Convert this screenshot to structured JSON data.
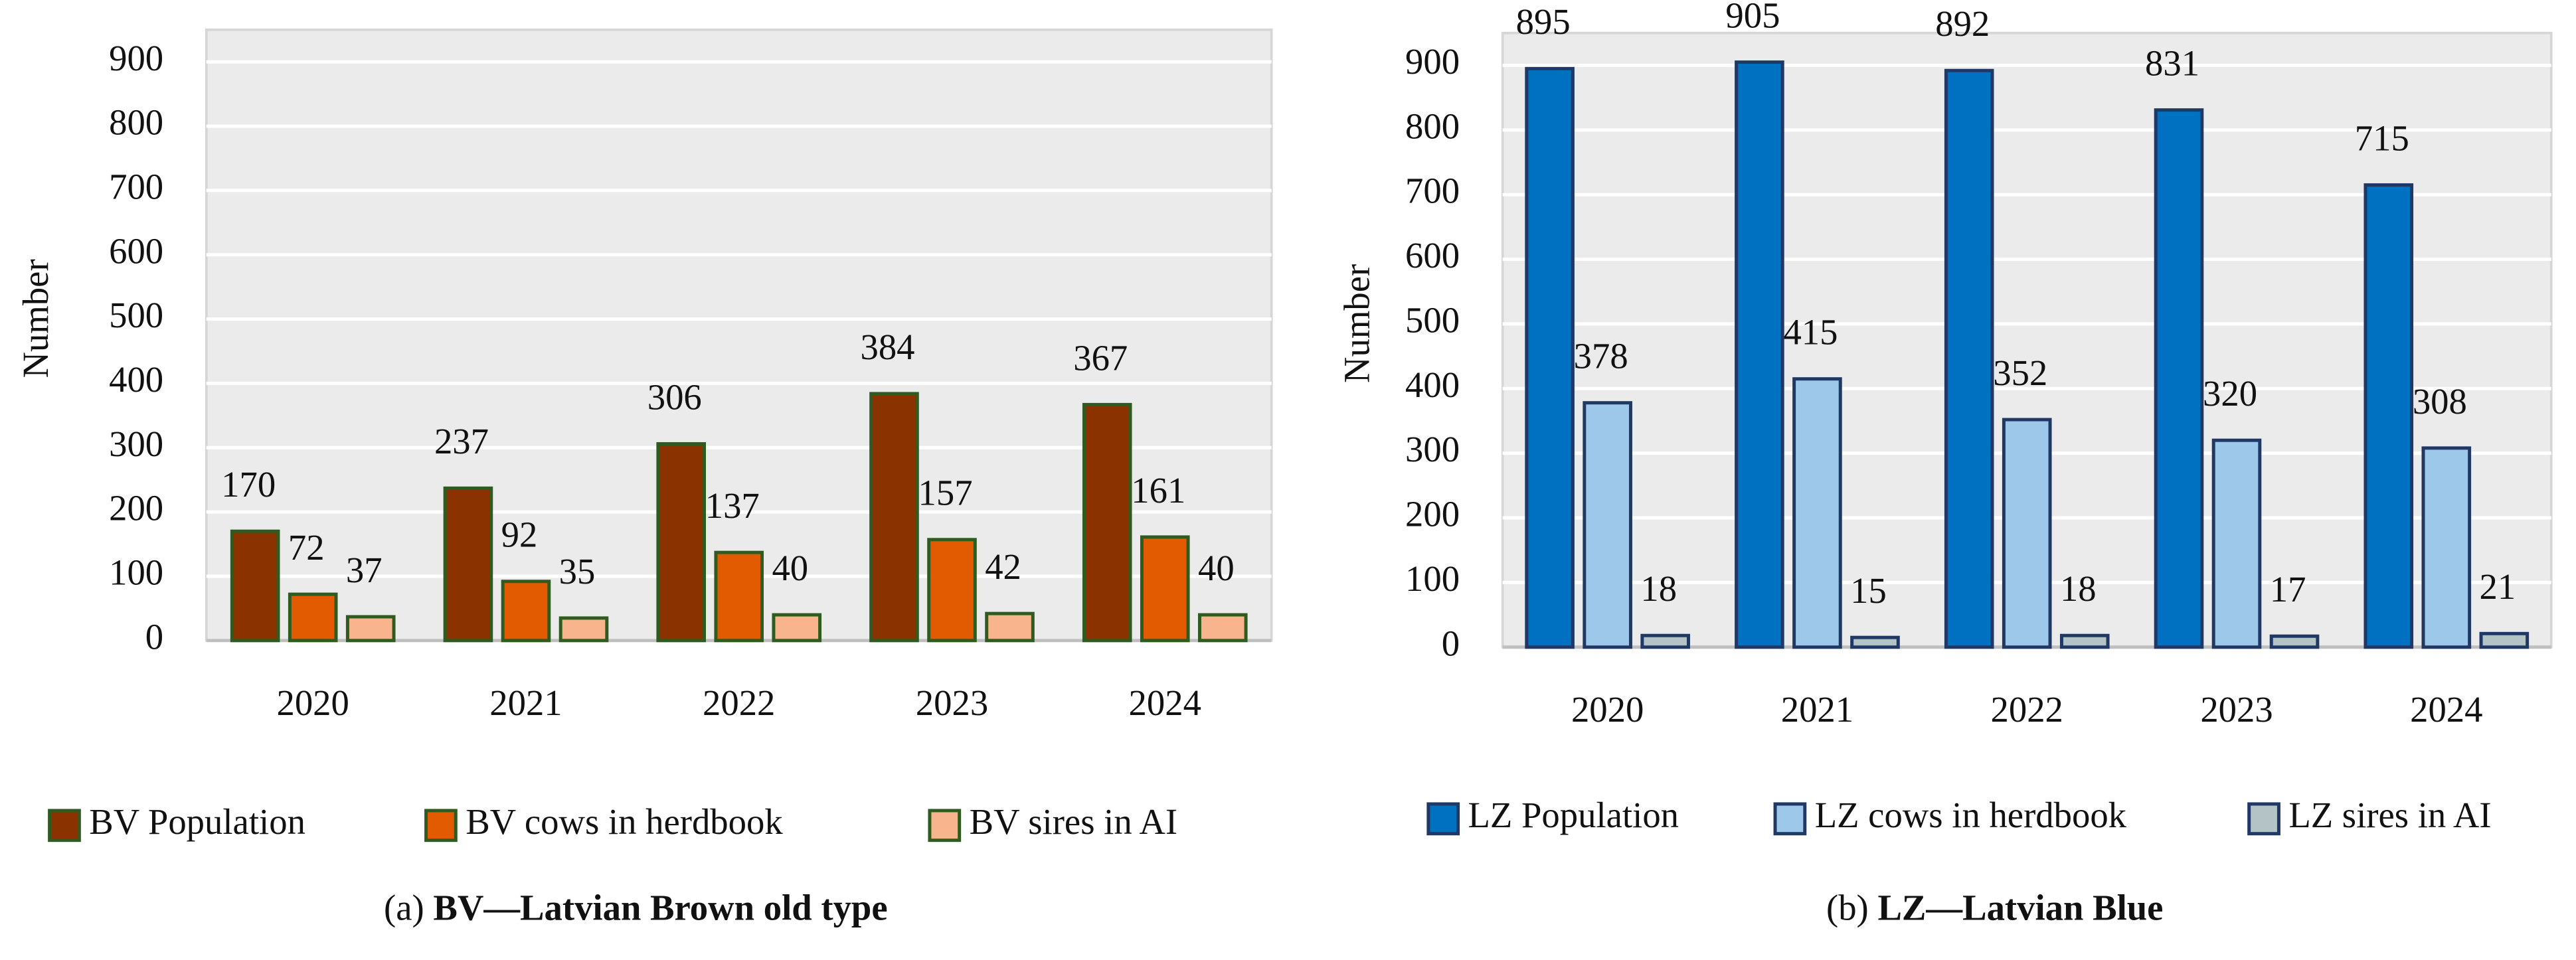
{
  "chart_data": [
    {
      "type": "bar",
      "ylabel": "Number",
      "caption_label": "(a)",
      "caption": "BV—Latvian Brown old type",
      "categories": [
        "2020",
        "2021",
        "2022",
        "2023",
        "2024"
      ],
      "series": [
        {
          "name": "BV Population",
          "color": "#8b3300",
          "values": [
            170,
            237,
            306,
            384,
            367
          ]
        },
        {
          "name": "BV cows in herdbook",
          "color": "#e35b00",
          "values": [
            72,
            92,
            137,
            157,
            161
          ]
        },
        {
          "name": "BV sires in AI",
          "color": "#f8b48c",
          "values": [
            37,
            35,
            40,
            42,
            40
          ]
        }
      ],
      "bar_stroke": "#2e5b1f",
      "ylim": [
        0,
        950
      ],
      "yticks": [
        0,
        100,
        200,
        300,
        400,
        500,
        600,
        700,
        800,
        900
      ],
      "grid": true
    },
    {
      "type": "bar",
      "ylabel": "Number",
      "caption_label": "(b)",
      "caption": "LZ—Latvian Blue",
      "categories": [
        "2020",
        "2021",
        "2022",
        "2023",
        "2024"
      ],
      "series": [
        {
          "name": "LZ Population",
          "color": "#0070c0",
          "values": [
            895,
            905,
            892,
            831,
            715
          ]
        },
        {
          "name": "LZ cows in herdbook",
          "color": "#9dc8ea",
          "values": [
            378,
            415,
            352,
            320,
            308
          ]
        },
        {
          "name": "LZ sires in AI",
          "color": "#b3c3c6",
          "values": [
            18,
            15,
            18,
            17,
            21
          ]
        }
      ],
      "bar_stroke": "#1f3864",
      "ylim": [
        0,
        950
      ],
      "yticks": [
        0,
        100,
        200,
        300,
        400,
        500,
        600,
        700,
        800,
        900
      ],
      "grid": true
    }
  ]
}
